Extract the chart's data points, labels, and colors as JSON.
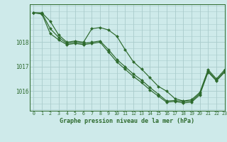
{
  "title": "Graphe pression niveau de la mer (hPa)",
  "background_color": "#ceeaea",
  "grid_color": "#aacccc",
  "line_color": "#2d6a2d",
  "marker_color": "#2d6a2d",
  "xlim": [
    -0.5,
    23
  ],
  "ylim": [
    1015.2,
    1019.55
  ],
  "yticks": [
    1016,
    1017,
    1018
  ],
  "xticks": [
    0,
    1,
    2,
    3,
    4,
    5,
    6,
    7,
    8,
    9,
    10,
    11,
    12,
    13,
    14,
    15,
    16,
    17,
    18,
    19,
    20,
    21,
    22,
    23
  ],
  "series": [
    [
      1019.2,
      1019.2,
      1018.85,
      1018.3,
      1018.0,
      1018.05,
      1018.0,
      1018.55,
      1018.6,
      1018.5,
      1018.25,
      1017.7,
      1017.2,
      1016.9,
      1016.55,
      1016.2,
      1016.0,
      1015.7,
      1015.6,
      1015.65,
      1015.95,
      1016.88,
      1016.5,
      1016.88
    ],
    [
      1019.2,
      1019.18,
      1018.55,
      1018.2,
      1017.95,
      1018.0,
      1017.95,
      1018.0,
      1018.05,
      1017.7,
      1017.3,
      1017.0,
      1016.7,
      1016.45,
      1016.15,
      1015.88,
      1015.6,
      1015.62,
      1015.58,
      1015.6,
      1015.9,
      1016.82,
      1016.45,
      1016.82
    ],
    [
      1019.2,
      1019.15,
      1018.35,
      1018.1,
      1017.9,
      1017.95,
      1017.9,
      1017.95,
      1018.0,
      1017.6,
      1017.2,
      1016.9,
      1016.6,
      1016.35,
      1016.05,
      1015.8,
      1015.55,
      1015.58,
      1015.52,
      1015.55,
      1015.85,
      1016.78,
      1016.42,
      1016.78
    ]
  ]
}
